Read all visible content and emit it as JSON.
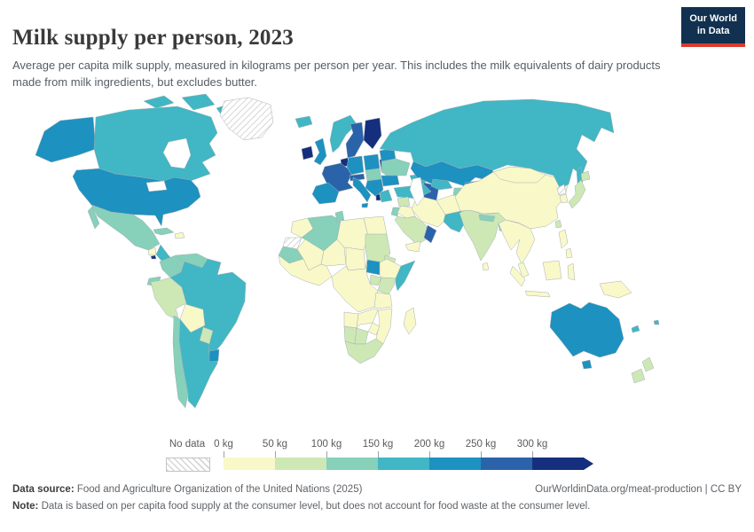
{
  "header": {
    "title": "Milk supply per person, 2023",
    "subtitle": "Average per capita milk supply, measured in kilograms per person per year. This includes the milk equivalents of dairy products made from milk ingredients, but excludes butter.",
    "logo_line1": "Our World",
    "logo_line2": "in Data",
    "logo_bg": "#12304f",
    "logo_accent": "#dc3a2e"
  },
  "footer": {
    "source_label": "Data source:",
    "source_text": " Food and Agriculture Organization of the United Nations (2025)",
    "link_text": "OurWorldinData.org/meat-production | CC BY",
    "note_label": "Note:",
    "note_text": " Data is based on per capita food supply at the consumer level, but does not account for food waste at the consumer level."
  },
  "chart_data": {
    "type": "choropleth",
    "title": "Milk supply per person, 2023",
    "unit": "kilograms per person per year",
    "legend_position": "bottom",
    "no_data": {
      "label": "No data"
    },
    "bins": [
      {
        "label": "0 kg",
        "min": 0,
        "max": 50,
        "color": "#f9f8c8"
      },
      {
        "label": "50 kg",
        "min": 50,
        "max": 100,
        "color": "#cde8b5"
      },
      {
        "label": "100 kg",
        "min": 100,
        "max": 150,
        "color": "#87d0ba"
      },
      {
        "label": "150 kg",
        "min": 150,
        "max": 200,
        "color": "#41b6c4"
      },
      {
        "label": "200 kg",
        "min": 200,
        "max": 250,
        "color": "#1d91c0"
      },
      {
        "label": "250 kg",
        "min": 250,
        "max": 300,
        "color": "#2a63a9"
      },
      {
        "label": "300 kg",
        "min": 300,
        "max": null,
        "color": "#152f7e"
      }
    ],
    "countries": {
      "alaska": {
        "name": "United States",
        "bin": 4
      },
      "canada": {
        "name": "Canada",
        "bin": 3
      },
      "canada-arctic": {
        "name": "Canada",
        "bin": 3
      },
      "greenland": {
        "name": "Greenland",
        "bin": null
      },
      "usa": {
        "name": "United States",
        "bin": 4
      },
      "mexico": {
        "name": "Mexico",
        "bin": 2
      },
      "guatemala": {
        "name": "Guatemala",
        "bin": 0
      },
      "el-salvador": {
        "name": "El Salvador",
        "bin": 6
      },
      "central-america": {
        "name": "Honduras/Nicaragua/Costa Rica",
        "bin": 3
      },
      "cuba": {
        "name": "Cuba",
        "bin": 2
      },
      "hispaniola": {
        "name": "Haiti/Dominican Republic",
        "bin": 0
      },
      "colombia": {
        "name": "Colombia",
        "bin": 2
      },
      "venezuela": {
        "name": "Venezuela",
        "bin": 2
      },
      "guianas": {
        "name": "Guyana/Suriname",
        "bin": 0
      },
      "ecuador": {
        "name": "Ecuador",
        "bin": 2
      },
      "peru": {
        "name": "Peru",
        "bin": 1
      },
      "brazil": {
        "name": "Brazil",
        "bin": 3
      },
      "bolivia": {
        "name": "Bolivia",
        "bin": 0
      },
      "paraguay": {
        "name": "Paraguay",
        "bin": 1
      },
      "uruguay": {
        "name": "Uruguay",
        "bin": 4
      },
      "chile": {
        "name": "Chile",
        "bin": 2
      },
      "argentina": {
        "name": "Argentina",
        "bin": 3
      },
      "iceland": {
        "name": "Iceland",
        "bin": 3
      },
      "ireland": {
        "name": "Ireland",
        "bin": 6
      },
      "uk": {
        "name": "United Kingdom",
        "bin": 4
      },
      "norway": {
        "name": "Norway",
        "bin": 3
      },
      "sweden": {
        "name": "Sweden",
        "bin": 5
      },
      "finland": {
        "name": "Finland",
        "bin": 6
      },
      "denmark": {
        "name": "Denmark",
        "bin": 6
      },
      "baltics": {
        "name": "Baltic states",
        "bin": 6
      },
      "benelux": {
        "name": "Netherlands/Belgium",
        "bin": 6
      },
      "germany": {
        "name": "Germany",
        "bin": 4
      },
      "france": {
        "name": "France",
        "bin": 5
      },
      "iberia": {
        "name": "Spain/Portugal",
        "bin": 4
      },
      "italy": {
        "name": "Italy",
        "bin": 4
      },
      "alpine": {
        "name": "Switzerland/Austria",
        "bin": 5
      },
      "poland": {
        "name": "Poland",
        "bin": 4
      },
      "czech-hungary": {
        "name": "Czechia/Slovakia/Hungary",
        "bin": 2
      },
      "belarus": {
        "name": "Belarus",
        "bin": 4
      },
      "ukraine": {
        "name": "Ukraine",
        "bin": 2
      },
      "romania": {
        "name": "Romania",
        "bin": 4
      },
      "balkans": {
        "name": "Serbia/Bosnia",
        "bin": 4
      },
      "albania": {
        "name": "Albania",
        "bin": 6
      },
      "greece": {
        "name": "Greece",
        "bin": 3
      },
      "russia": {
        "name": "Russia",
        "bin": 3
      },
      "sakhalin": {
        "name": "Russia",
        "bin": 3
      },
      "caucasus": {
        "name": "Georgia/Azerbaijan",
        "bin": 3
      },
      "kazakhstan": {
        "name": "Kazakhstan",
        "bin": 4
      },
      "turkmenistan": {
        "name": "Turkmenistan",
        "bin": 5
      },
      "uzbekistan": {
        "name": "Uzbekistan",
        "bin": 3
      },
      "kyrgyzstan": {
        "name": "Kyrgyzstan",
        "bin": 4
      },
      "tajikistan": {
        "name": "Tajikistan",
        "bin": 2
      },
      "turkey": {
        "name": "Turkey",
        "bin": 3
      },
      "syria": {
        "name": "Syria",
        "bin": 1
      },
      "israel-jordan": {
        "name": "Israel/Jordan",
        "bin": 2
      },
      "iraq": {
        "name": "Iraq",
        "bin": 0
      },
      "iran": {
        "name": "Iran",
        "bin": 0
      },
      "saudi-arabia": {
        "name": "Saudi Arabia",
        "bin": 1
      },
      "yemen": {
        "name": "Yemen",
        "bin": 0
      },
      "oman": {
        "name": "Oman",
        "bin": 5
      },
      "afghanistan": {
        "name": "Afghanistan",
        "bin": 0
      },
      "pakistan": {
        "name": "Pakistan",
        "bin": 3
      },
      "india": {
        "name": "India",
        "bin": 1
      },
      "nepal": {
        "name": "Nepal",
        "bin": 2
      },
      "bangladesh": {
        "name": "Bangladesh",
        "bin": 2
      },
      "sri-lanka": {
        "name": "Sri Lanka",
        "bin": 0
      },
      "china": {
        "name": "China",
        "bin": 0
      },
      "mongolia": {
        "name": "Mongolia",
        "bin": 0
      },
      "north-korea": {
        "name": "North Korea",
        "bin": null
      },
      "south-korea": {
        "name": "South Korea",
        "bin": 0
      },
      "japan": {
        "name": "Japan",
        "bin": 1
      },
      "taiwan": {
        "name": "Taiwan",
        "bin": 1
      },
      "se-asia": {
        "name": "Mainland Southeast Asia",
        "bin": 0
      },
      "malay-peninsula": {
        "name": "Malaysia",
        "bin": 0
      },
      "indonesia": {
        "name": "Indonesia",
        "bin": 0
      },
      "philippines": {
        "name": "Philippines",
        "bin": 0
      },
      "new-guinea": {
        "name": "Papua New Guinea",
        "bin": 0
      },
      "australia": {
        "name": "Australia",
        "bin": 4
      },
      "new-zealand": {
        "name": "New Zealand",
        "bin": 1
      },
      "new-caledonia": {
        "name": "New Caledonia",
        "bin": 3
      },
      "fiji": {
        "name": "Fiji",
        "bin": 3
      },
      "morocco": {
        "name": "Morocco",
        "bin": 0
      },
      "western-sahara": {
        "name": "Western Sahara",
        "bin": null
      },
      "algeria": {
        "name": "Algeria",
        "bin": 2
      },
      "tunisia": {
        "name": "Tunisia",
        "bin": 2
      },
      "libya": {
        "name": "Libya",
        "bin": 0
      },
      "egypt": {
        "name": "Egypt",
        "bin": 0
      },
      "mauritania": {
        "name": "Mauritania",
        "bin": 2
      },
      "mali": {
        "name": "Mali",
        "bin": 0
      },
      "niger": {
        "name": "Niger",
        "bin": 0
      },
      "chad": {
        "name": "Chad",
        "bin": 0
      },
      "sudan": {
        "name": "Sudan",
        "bin": 1
      },
      "south-sudan": {
        "name": "South Sudan",
        "bin": 4
      },
      "eritrea": {
        "name": "Eritrea",
        "bin": 1
      },
      "ethiopia": {
        "name": "Ethiopia",
        "bin": 0
      },
      "somalia": {
        "name": "Somalia",
        "bin": 3
      },
      "kenya": {
        "name": "Kenya",
        "bin": 1
      },
      "uganda": {
        "name": "Uganda",
        "bin": 1
      },
      "west-africa": {
        "name": "West Africa (Nigeria, Ghana, Senegal)",
        "bin": 0
      },
      "central-africa": {
        "name": "Central Africa (DR Congo, Cameroon)",
        "bin": 0
      },
      "tanzania": {
        "name": "Tanzania",
        "bin": 0
      },
      "angola": {
        "name": "Angola",
        "bin": 0
      },
      "zambia": {
        "name": "Zambia",
        "bin": 0
      },
      "mozambique": {
        "name": "Mozambique",
        "bin": 0
      },
      "zimbabwe": {
        "name": "Zimbabwe",
        "bin": 0
      },
      "namibia": {
        "name": "Namibia",
        "bin": 1
      },
      "botswana": {
        "name": "Botswana",
        "bin": 1
      },
      "south-africa": {
        "name": "South Africa",
        "bin": 1
      },
      "madagascar": {
        "name": "Madagascar",
        "bin": 0
      }
    }
  }
}
